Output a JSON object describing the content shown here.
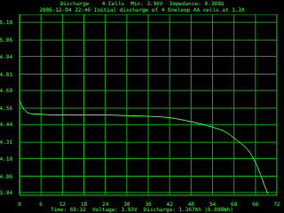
{
  "chart_data": {
    "type": "line",
    "title": "Discharge    4 Cells  Min: 3.96V  Impedance: 0.309Ω",
    "subtitle": "2006-12-04 22:46 Initial discharge of 4 Eneloop AA cells at 1.3A",
    "annotations": [
      "Time: 69:32  Voltage: 3.93V  Discharge: 1.367Ah (6.098Wh)"
    ],
    "x": [
      0,
      1,
      3,
      6,
      9,
      12,
      18,
      24,
      30,
      36,
      42,
      48,
      54,
      58,
      60,
      62,
      64,
      66,
      67,
      68,
      69,
      69.5
    ],
    "values": [
      4.62,
      4.56,
      4.52,
      4.515,
      4.51,
      4.51,
      4.51,
      4.51,
      4.505,
      4.5,
      4.49,
      4.46,
      4.42,
      4.38,
      4.34,
      4.3,
      4.25,
      4.16,
      4.1,
      4.03,
      3.96,
      3.93
    ],
    "color": "#33ff33",
    "xlim": [
      0,
      72
    ],
    "xticks": [
      0,
      6,
      12,
      18,
      24,
      30,
      36,
      42,
      48,
      54,
      60,
      66,
      72
    ],
    "ylim": [
      3.92,
      5.25
    ],
    "yticks": [
      3.94,
      4.06,
      4.19,
      4.31,
      4.44,
      4.56,
      4.69,
      4.81,
      4.94,
      5.06,
      5.19
    ],
    "grid": true
  }
}
